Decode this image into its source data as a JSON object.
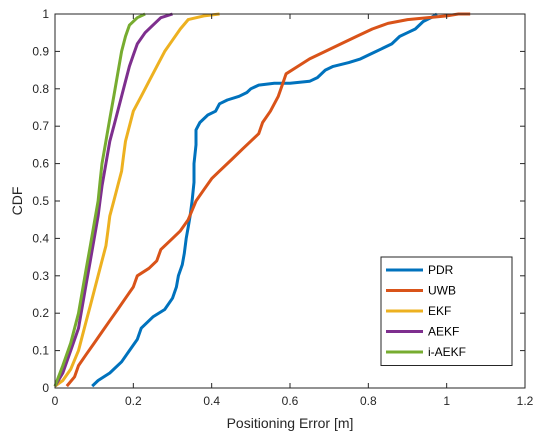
{
  "chart_data": {
    "type": "line",
    "xlabel": "Positioning Error [m]",
    "ylabel": "CDF",
    "xlim": [
      0,
      1.2
    ],
    "ylim": [
      0,
      1
    ],
    "xticks": [
      "0",
      "0.2",
      "0.4",
      "0.6",
      "0.8",
      "1",
      "1.2"
    ],
    "yticks": [
      "0",
      "0.1",
      "0.2",
      "0.3",
      "0.4",
      "0.5",
      "0.6",
      "0.7",
      "0.8",
      "0.9",
      "1"
    ],
    "grid": false,
    "legend_position": "bottom-right",
    "series": [
      {
        "name": "PDR",
        "color": "#0072BD",
        "points": [
          [
            0.095,
            0.005
          ],
          [
            0.11,
            0.02
          ],
          [
            0.14,
            0.04
          ],
          [
            0.17,
            0.07
          ],
          [
            0.19,
            0.1
          ],
          [
            0.21,
            0.13
          ],
          [
            0.22,
            0.16
          ],
          [
            0.25,
            0.19
          ],
          [
            0.28,
            0.21
          ],
          [
            0.3,
            0.24
          ],
          [
            0.31,
            0.27
          ],
          [
            0.315,
            0.3
          ],
          [
            0.325,
            0.33
          ],
          [
            0.33,
            0.36
          ],
          [
            0.335,
            0.4
          ],
          [
            0.34,
            0.43
          ],
          [
            0.345,
            0.46
          ],
          [
            0.35,
            0.5
          ],
          [
            0.355,
            0.55
          ],
          [
            0.355,
            0.6
          ],
          [
            0.36,
            0.65
          ],
          [
            0.36,
            0.69
          ],
          [
            0.37,
            0.71
          ],
          [
            0.39,
            0.73
          ],
          [
            0.41,
            0.74
          ],
          [
            0.42,
            0.76
          ],
          [
            0.44,
            0.77
          ],
          [
            0.47,
            0.78
          ],
          [
            0.49,
            0.79
          ],
          [
            0.5,
            0.8
          ],
          [
            0.52,
            0.81
          ],
          [
            0.56,
            0.815
          ],
          [
            0.6,
            0.815
          ],
          [
            0.65,
            0.82
          ],
          [
            0.67,
            0.83
          ],
          [
            0.69,
            0.85
          ],
          [
            0.71,
            0.86
          ],
          [
            0.75,
            0.87
          ],
          [
            0.78,
            0.88
          ],
          [
            0.8,
            0.89
          ],
          [
            0.82,
            0.9
          ],
          [
            0.86,
            0.92
          ],
          [
            0.88,
            0.94
          ],
          [
            0.9,
            0.95
          ],
          [
            0.92,
            0.96
          ],
          [
            0.94,
            0.98
          ],
          [
            0.96,
            0.99
          ],
          [
            0.975,
            1.0
          ]
        ]
      },
      {
        "name": "UWB",
        "color": "#D95319",
        "points": [
          [
            0.03,
            0.005
          ],
          [
            0.05,
            0.03
          ],
          [
            0.06,
            0.06
          ],
          [
            0.08,
            0.09
          ],
          [
            0.1,
            0.12
          ],
          [
            0.12,
            0.15
          ],
          [
            0.14,
            0.18
          ],
          [
            0.16,
            0.21
          ],
          [
            0.18,
            0.24
          ],
          [
            0.2,
            0.27
          ],
          [
            0.21,
            0.3
          ],
          [
            0.24,
            0.32
          ],
          [
            0.26,
            0.34
          ],
          [
            0.27,
            0.37
          ],
          [
            0.3,
            0.4
          ],
          [
            0.32,
            0.42
          ],
          [
            0.34,
            0.45
          ],
          [
            0.36,
            0.5
          ],
          [
            0.38,
            0.53
          ],
          [
            0.4,
            0.56
          ],
          [
            0.42,
            0.58
          ],
          [
            0.45,
            0.61
          ],
          [
            0.48,
            0.64
          ],
          [
            0.5,
            0.66
          ],
          [
            0.52,
            0.68
          ],
          [
            0.53,
            0.71
          ],
          [
            0.55,
            0.74
          ],
          [
            0.57,
            0.78
          ],
          [
            0.58,
            0.81
          ],
          [
            0.59,
            0.84
          ],
          [
            0.62,
            0.86
          ],
          [
            0.65,
            0.88
          ],
          [
            0.69,
            0.9
          ],
          [
            0.73,
            0.92
          ],
          [
            0.77,
            0.94
          ],
          [
            0.81,
            0.96
          ],
          [
            0.85,
            0.975
          ],
          [
            0.9,
            0.985
          ],
          [
            0.95,
            0.99
          ],
          [
            1.0,
            0.995
          ],
          [
            1.03,
            1.0
          ],
          [
            1.06,
            1.0
          ]
        ]
      },
      {
        "name": "EKF",
        "color": "#EDB120",
        "points": [
          [
            0.0,
            0.005
          ],
          [
            0.02,
            0.02
          ],
          [
            0.04,
            0.05
          ],
          [
            0.06,
            0.1
          ],
          [
            0.07,
            0.14
          ],
          [
            0.08,
            0.18
          ],
          [
            0.09,
            0.22
          ],
          [
            0.1,
            0.26
          ],
          [
            0.11,
            0.3
          ],
          [
            0.12,
            0.34
          ],
          [
            0.13,
            0.38
          ],
          [
            0.135,
            0.42
          ],
          [
            0.14,
            0.46
          ],
          [
            0.15,
            0.5
          ],
          [
            0.16,
            0.54
          ],
          [
            0.17,
            0.58
          ],
          [
            0.175,
            0.62
          ],
          [
            0.18,
            0.66
          ],
          [
            0.19,
            0.7
          ],
          [
            0.2,
            0.74
          ],
          [
            0.22,
            0.78
          ],
          [
            0.24,
            0.82
          ],
          [
            0.26,
            0.86
          ],
          [
            0.28,
            0.9
          ],
          [
            0.3,
            0.93
          ],
          [
            0.32,
            0.96
          ],
          [
            0.34,
            0.985
          ],
          [
            0.38,
            0.995
          ],
          [
            0.42,
            1.0
          ]
        ]
      },
      {
        "name": "AEKF",
        "color": "#7E2F8E",
        "points": [
          [
            0.0,
            0.005
          ],
          [
            0.02,
            0.04
          ],
          [
            0.04,
            0.1
          ],
          [
            0.06,
            0.16
          ],
          [
            0.07,
            0.22
          ],
          [
            0.08,
            0.28
          ],
          [
            0.09,
            0.34
          ],
          [
            0.1,
            0.4
          ],
          [
            0.11,
            0.46
          ],
          [
            0.115,
            0.5
          ],
          [
            0.12,
            0.54
          ],
          [
            0.13,
            0.6
          ],
          [
            0.14,
            0.66
          ],
          [
            0.15,
            0.7
          ],
          [
            0.16,
            0.74
          ],
          [
            0.17,
            0.78
          ],
          [
            0.18,
            0.82
          ],
          [
            0.19,
            0.86
          ],
          [
            0.2,
            0.89
          ],
          [
            0.21,
            0.92
          ],
          [
            0.23,
            0.95
          ],
          [
            0.25,
            0.97
          ],
          [
            0.27,
            0.99
          ],
          [
            0.3,
            1.0
          ]
        ]
      },
      {
        "name": "i-AEKF",
        "color": "#77AC30",
        "points": [
          [
            0.0,
            0.005
          ],
          [
            0.02,
            0.06
          ],
          [
            0.04,
            0.12
          ],
          [
            0.06,
            0.2
          ],
          [
            0.07,
            0.26
          ],
          [
            0.08,
            0.32
          ],
          [
            0.09,
            0.38
          ],
          [
            0.1,
            0.44
          ],
          [
            0.11,
            0.5
          ],
          [
            0.115,
            0.55
          ],
          [
            0.12,
            0.6
          ],
          [
            0.13,
            0.66
          ],
          [
            0.14,
            0.72
          ],
          [
            0.15,
            0.78
          ],
          [
            0.16,
            0.84
          ],
          [
            0.17,
            0.9
          ],
          [
            0.18,
            0.94
          ],
          [
            0.19,
            0.97
          ],
          [
            0.21,
            0.99
          ],
          [
            0.23,
            1.0
          ]
        ]
      }
    ]
  }
}
